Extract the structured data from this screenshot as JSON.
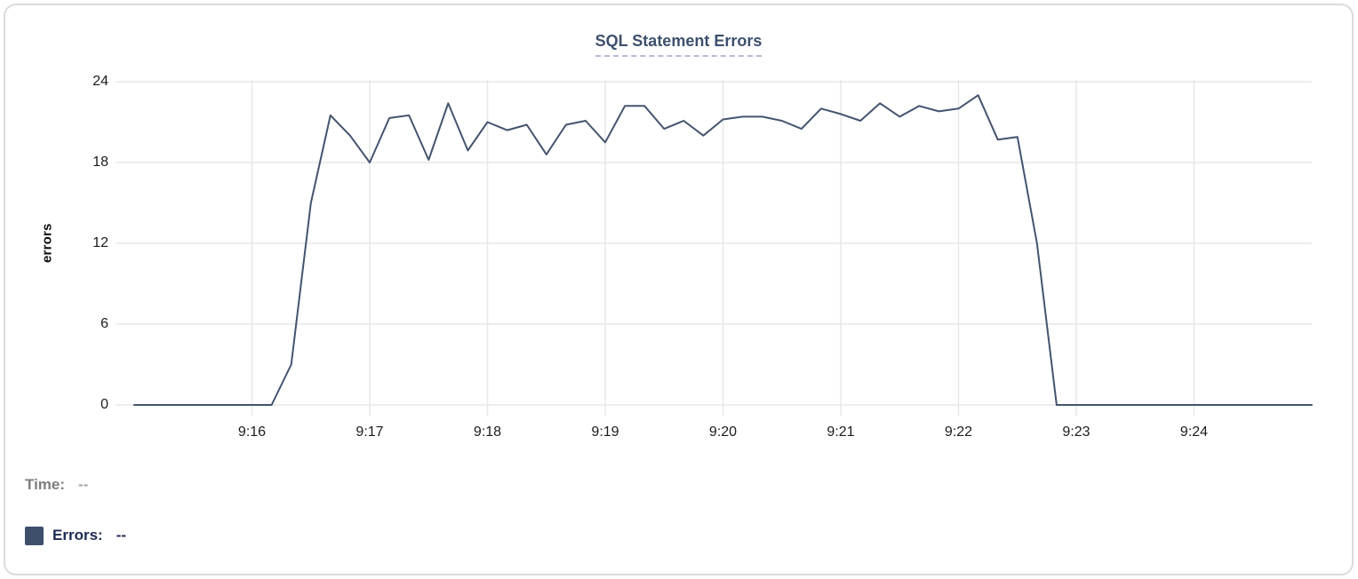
{
  "tooltip": {
    "time_label": "Time:",
    "time_value": "--",
    "errors_label": "Errors:",
    "errors_value": "--",
    "swatch_color": "#3d4f6b"
  },
  "colors": {
    "line": "#44546e",
    "grid": "#e7e7e7",
    "title": "#3e506e",
    "title_underline": "#b3bdd3"
  },
  "chart_data": {
    "type": "line",
    "title": "SQL Statement Errors",
    "xlabel": "",
    "ylabel": "errors",
    "ylim": [
      0,
      24
    ],
    "y_ticks": [
      0,
      6,
      12,
      18,
      24
    ],
    "x_range": [
      "9:15:00",
      "9:25:00"
    ],
    "x_ticks": [
      "9:16",
      "9:17",
      "9:18",
      "9:19",
      "9:20",
      "9:21",
      "9:22",
      "9:23",
      "9:24"
    ],
    "grid": true,
    "legend_position": "bottom-left",
    "series": [
      {
        "name": "Errors",
        "color": "#44546e",
        "x": [
          "9:15:00",
          "9:15:10",
          "9:15:20",
          "9:15:30",
          "9:15:40",
          "9:15:50",
          "9:16:00",
          "9:16:10",
          "9:16:20",
          "9:16:30",
          "9:16:40",
          "9:16:50",
          "9:17:00",
          "9:17:10",
          "9:17:20",
          "9:17:30",
          "9:17:40",
          "9:17:50",
          "9:18:00",
          "9:18:10",
          "9:18:20",
          "9:18:30",
          "9:18:40",
          "9:18:50",
          "9:19:00",
          "9:19:10",
          "9:19:20",
          "9:19:30",
          "9:19:40",
          "9:19:50",
          "9:20:00",
          "9:20:10",
          "9:20:20",
          "9:20:30",
          "9:20:40",
          "9:20:50",
          "9:21:00",
          "9:21:10",
          "9:21:20",
          "9:21:30",
          "9:21:40",
          "9:21:50",
          "9:22:00",
          "9:22:10",
          "9:22:20",
          "9:22:30",
          "9:22:40",
          "9:22:50",
          "9:23:00",
          "9:23:10",
          "9:23:20",
          "9:23:30",
          "9:23:40",
          "9:23:50",
          "9:24:00",
          "9:24:10",
          "9:24:20",
          "9:24:30",
          "9:24:40",
          "9:24:50",
          "9:25:00"
        ],
        "values": [
          0,
          0,
          0,
          0,
          0,
          0,
          0,
          0,
          3,
          15,
          21.5,
          20,
          18,
          21.3,
          21.5,
          18.2,
          22.4,
          18.9,
          21,
          20.4,
          20.8,
          18.6,
          20.8,
          21.1,
          19.5,
          22.2,
          22.2,
          20.5,
          21.1,
          20,
          21.2,
          21.4,
          21.4,
          21.1,
          20.5,
          22,
          21.6,
          21.1,
          22.4,
          21.4,
          22.2,
          21.8,
          22,
          23,
          19.7,
          19.9,
          12,
          0,
          0,
          0,
          0,
          0,
          0,
          0,
          0,
          0,
          0,
          0,
          0,
          0,
          0
        ]
      }
    ]
  }
}
